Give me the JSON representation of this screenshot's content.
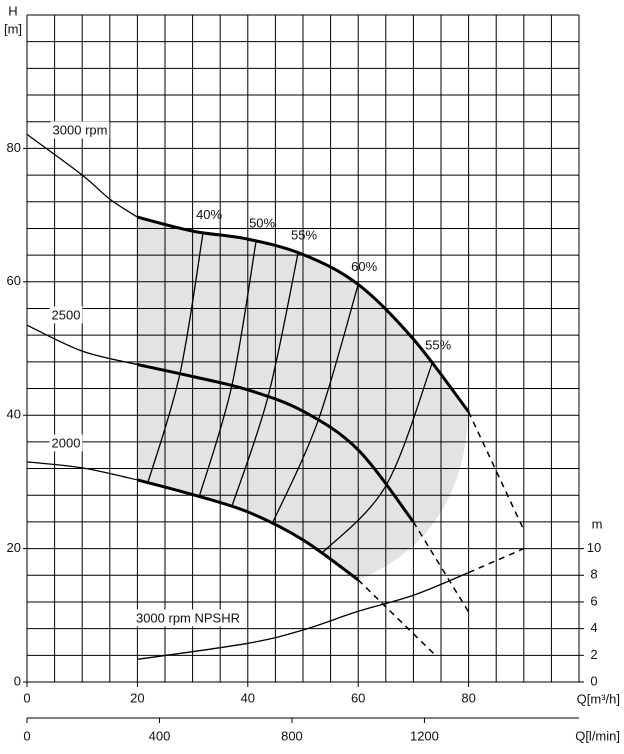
{
  "chart_data": {
    "type": "line",
    "ylabel": "H",
    "yunit": "[m]",
    "y2label": "m",
    "xlabel": "Q[m³/h]",
    "x2label": "Q[l/min]",
    "xlim": [
      0,
      100
    ],
    "xticks": [
      0,
      20,
      40,
      60,
      80
    ],
    "ylim": [
      0,
      100
    ],
    "yticks": [
      0,
      20,
      40,
      60,
      80
    ],
    "y2lim": [
      0,
      50
    ],
    "y2ticks": [
      0,
      2,
      4,
      6,
      8,
      10
    ],
    "x2lim": [
      0,
      1666.7
    ],
    "x2ticks": [
      0,
      400,
      800,
      1200
    ],
    "grid": true,
    "xgrid_step": 5,
    "ygrid_step": 4,
    "region_color": "#e3e3e3",
    "series": [
      {
        "name": "3000 rpm",
        "color": "#000",
        "x": [
          0,
          10,
          15,
          20,
          30,
          40,
          50,
          60,
          70,
          80,
          90
        ],
        "values": [
          82.1,
          76,
          72.4,
          69.7,
          67.6,
          66.4,
          64.1,
          59.6,
          51.4,
          40.5,
          22.8
        ],
        "segment_styles": [
          "thin",
          "thin",
          "thin",
          "thick",
          "thick",
          "thick",
          "thick",
          "thick",
          "thick",
          "dashed"
        ]
      },
      {
        "name": "2500",
        "color": "#000",
        "x": [
          0,
          10,
          20,
          30,
          40,
          50,
          60,
          70,
          80
        ],
        "values": [
          53.5,
          49.6,
          47.6,
          45.8,
          43.8,
          40.6,
          34.8,
          24,
          10.5
        ],
        "segment_styles": [
          "thin",
          "thin",
          "thick",
          "thick",
          "thick",
          "thick",
          "thick",
          "dashed"
        ]
      },
      {
        "name": "2000",
        "color": "#000",
        "x": [
          0,
          10,
          20,
          30,
          40,
          50,
          60,
          74
        ],
        "values": [
          33,
          32.1,
          30.3,
          28.1,
          25.5,
          21.3,
          15.3,
          4
        ],
        "segment_styles": [
          "thin",
          "thin",
          "thick",
          "thick",
          "thick",
          "thick",
          "dashed"
        ]
      },
      {
        "name": "3000 rpm NPSHR",
        "color": "#000",
        "axis": "y2",
        "x": [
          20,
          40,
          50,
          60,
          70,
          80,
          90
        ],
        "values": [
          1.7,
          2.9,
          3.9,
          5.3,
          6.5,
          8.2,
          10
        ],
        "segment_styles": [
          "thin",
          "thin",
          "thin",
          "thin",
          "thin",
          "dashed"
        ]
      }
    ],
    "efficiency": [
      {
        "label": "40%",
        "x": [
          21.9,
          27.7,
          31.9
        ],
        "values": [
          29.9,
          46.2,
          67.4
        ]
      },
      {
        "label": "50%",
        "x": [
          31.2,
          37.1,
          41.5
        ],
        "values": [
          27.8,
          44.4,
          66.1
        ]
      },
      {
        "label": "55%",
        "x": [
          37.1,
          43.7,
          49.1
        ],
        "values": [
          26.3,
          42.9,
          64.3
        ]
      },
      {
        "label": "60%",
        "x": [
          44.4,
          52.7,
          60
        ],
        "values": [
          23.7,
          39.1,
          59.6
        ]
      },
      {
        "label": "55%",
        "x": [
          53.4,
          65,
          73.4
        ],
        "values": [
          19.3,
          29.4,
          47.8
        ]
      }
    ]
  }
}
